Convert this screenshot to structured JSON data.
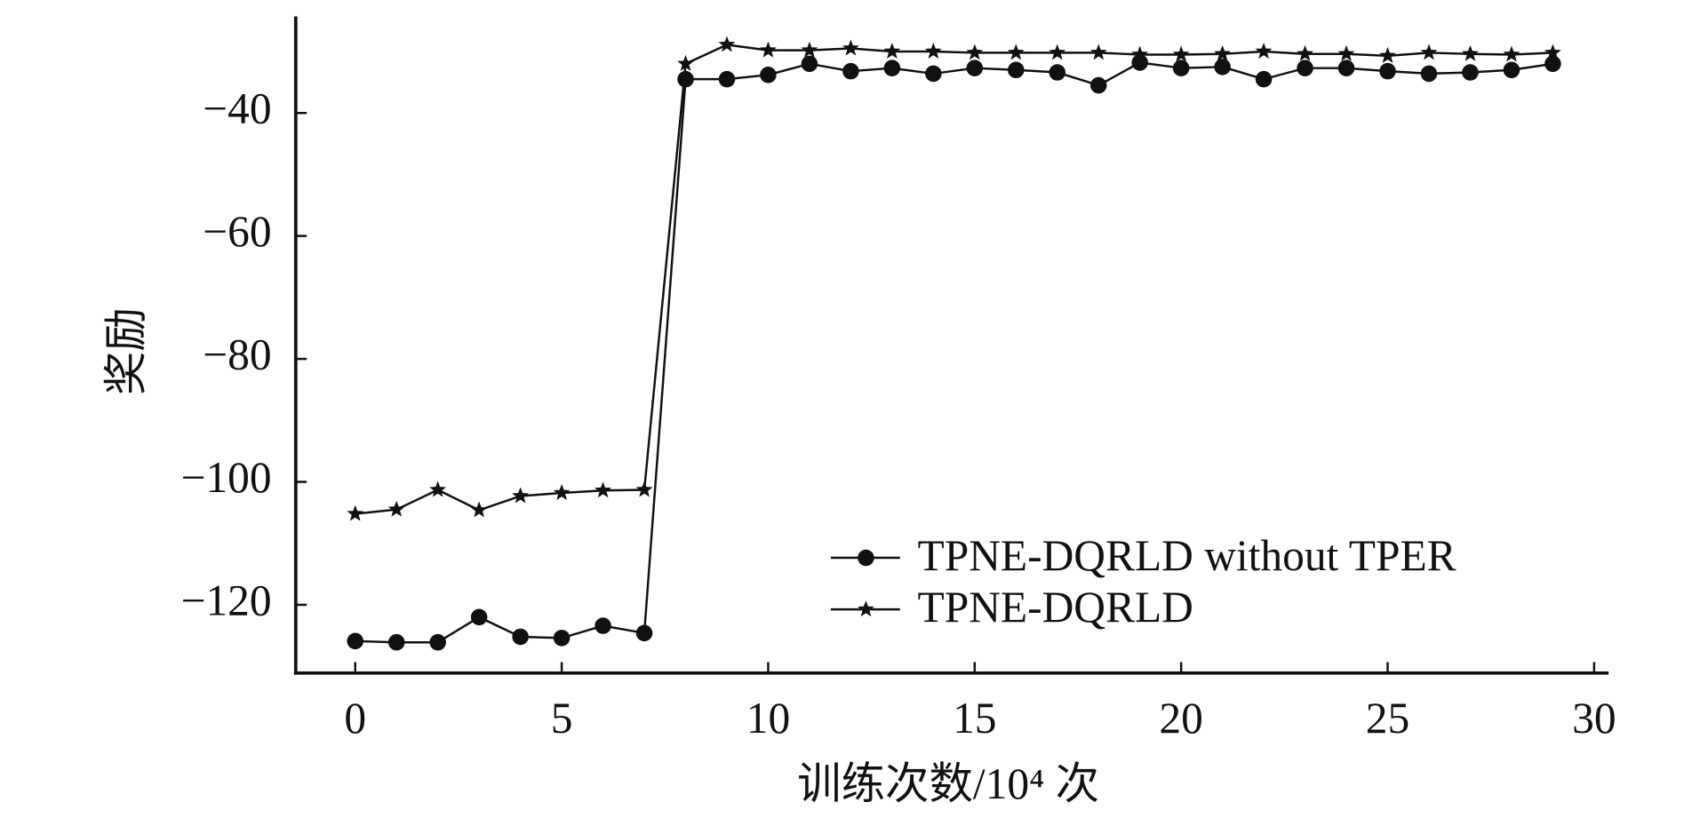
{
  "chart_data": {
    "type": "line",
    "x_label": "训练次数/10⁴ 次",
    "y_label": "奖励",
    "x": [
      0,
      1,
      2,
      3,
      4,
      5,
      6,
      7,
      8,
      9,
      10,
      11,
      12,
      13,
      14,
      15,
      16,
      17,
      18,
      19,
      20,
      21,
      22,
      23,
      24,
      25,
      26,
      27,
      28,
      29
    ],
    "series": [
      {
        "name": "TPNE-DQRLD without TPER",
        "color": "#111111",
        "marker": "circle",
        "values": [
          -125.9,
          -126.1,
          -126.1,
          -122,
          -125.2,
          -125.4,
          -123.4,
          -124.6,
          -34.5,
          -34.5,
          -33.8,
          -32,
          -33.2,
          -32.7,
          -33.6,
          -32.7,
          -33,
          -33.4,
          -35.5,
          -31.8,
          -32.7,
          -32.5,
          -34.5,
          -32.7,
          -32.7,
          -33.2,
          -33.6,
          -33.4,
          -33,
          -32
        ]
      },
      {
        "name": "TPNE-DQRLD",
        "color": "#111111",
        "marker": "star",
        "values": [
          -105.2,
          -104.5,
          -101.3,
          -104.6,
          -102.3,
          -101.8,
          -101.4,
          -101.3,
          -32,
          -28.9,
          -29.8,
          -29.8,
          -29.5,
          -30,
          -30,
          -30.2,
          -30.2,
          -30.2,
          -30.2,
          -30.5,
          -30.5,
          -30.4,
          -30,
          -30.4,
          -30.4,
          -30.7,
          -30.2,
          -30.4,
          -30.5,
          -30.2
        ]
      }
    ],
    "xlim": [
      -1.44,
      30.35
    ],
    "ylim": [
      -131.1,
      -24.3
    ],
    "xticks": [
      0,
      5,
      10,
      15,
      20,
      25,
      30
    ],
    "yticks": [
      {
        "value": -120,
        "label": "−120"
      },
      {
        "value": -100,
        "label": "−100"
      },
      {
        "value": -80,
        "label": "−80"
      },
      {
        "value": -60,
        "label": "−60"
      },
      {
        "value": -40,
        "label": "−40"
      }
    ],
    "legend": "lower-right",
    "grid": false
  }
}
